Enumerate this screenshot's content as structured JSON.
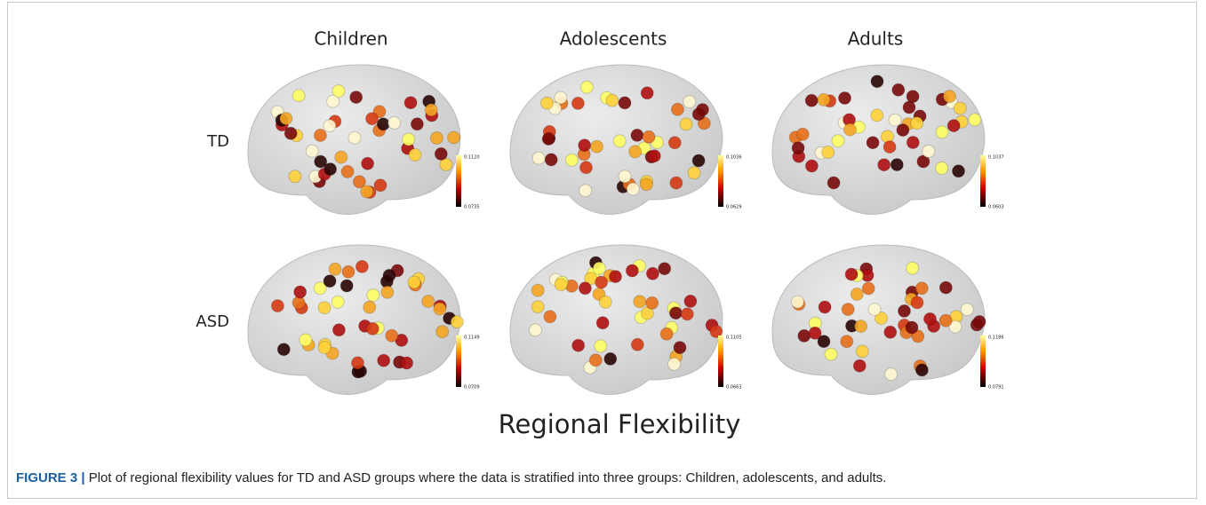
{
  "figure": {
    "columns": [
      "Children",
      "Adolescents",
      "Adults"
    ],
    "rows": [
      "TD",
      "ASD"
    ],
    "colorbars": [
      [
        {
          "max": "0.1120",
          "min": "0.0735"
        },
        {
          "max": "0.1036",
          "min": "0.0629"
        },
        {
          "max": "0.1037",
          "min": "0.0603"
        }
      ],
      [
        {
          "max": "0.1149",
          "min": "0.0709"
        },
        {
          "max": "0.1105",
          "min": "0.0663"
        },
        {
          "max": "0.1186",
          "min": "0.0791"
        }
      ]
    ],
    "axis_label": "Regional Flexibility",
    "caption": {
      "label": "FIGURE 3 |",
      "text": "Plot of regional flexibility values for TD and ASD groups where the data is stratified into three groups: Children, adolescents, and adults."
    }
  }
}
